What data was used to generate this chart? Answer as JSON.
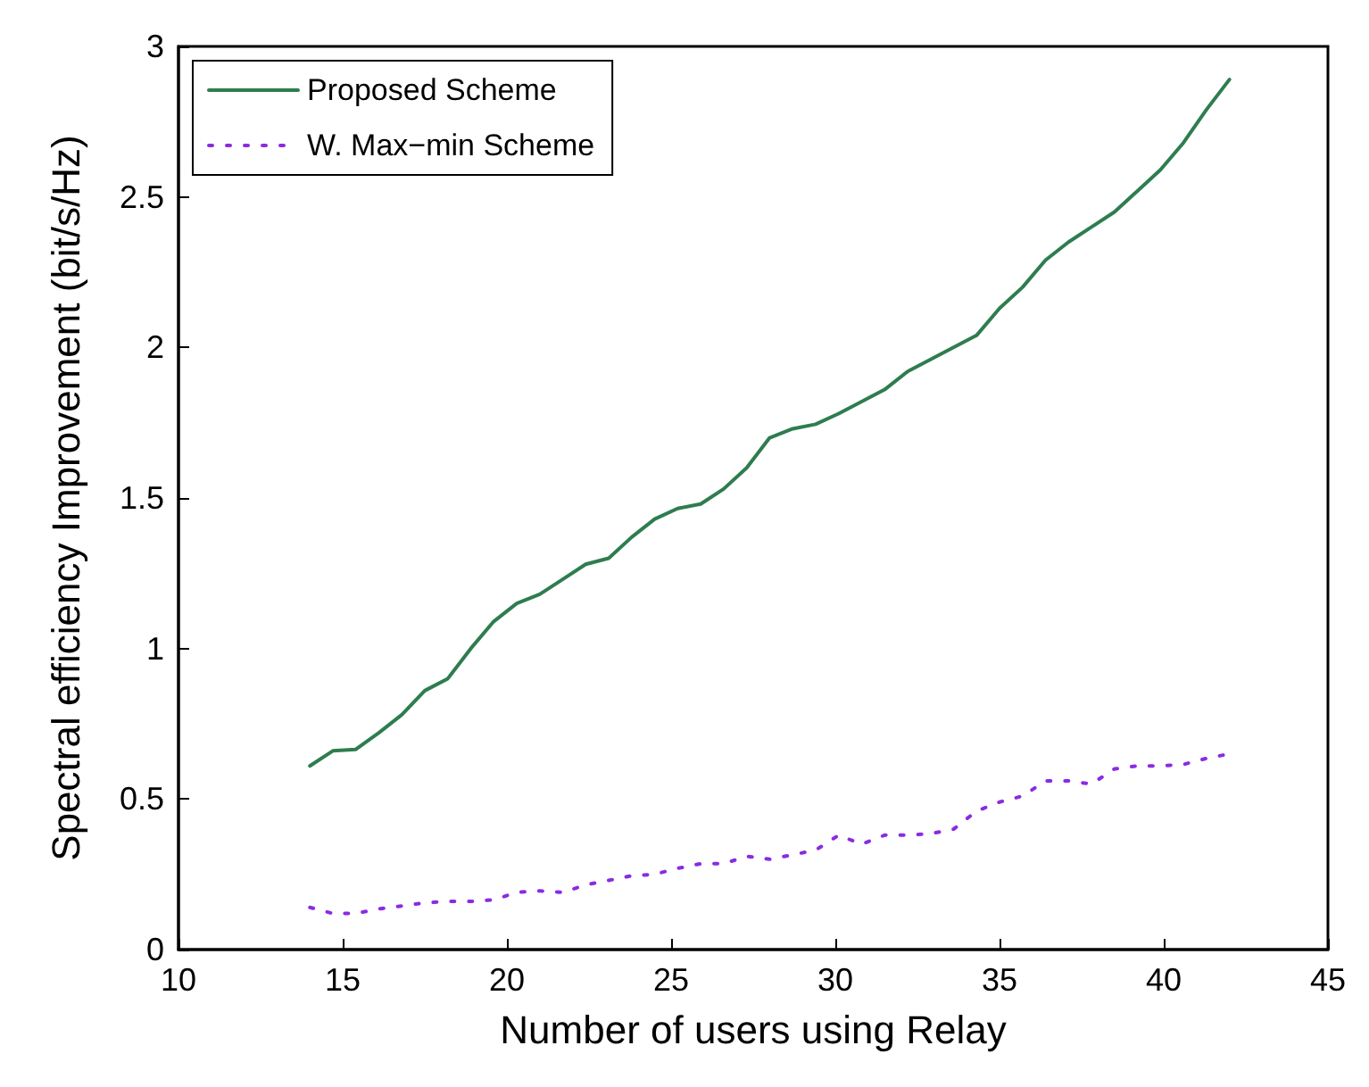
{
  "chart_data": {
    "type": "line",
    "xlabel": "Number of users using Relay",
    "ylabel": "Spectral efficiency Improvement (bit/s/Hz)",
    "x": [
      14,
      14.7,
      15.4,
      16.1,
      16.8,
      17.5,
      18.2,
      18.9,
      19.6,
      20.3,
      21,
      21.7,
      22.4,
      23.1,
      23.8,
      24.5,
      25.2,
      25.9,
      26.6,
      27.3,
      28,
      28.7,
      29.4,
      30.1,
      30.8,
      31.5,
      32.2,
      32.9,
      33.6,
      34.3,
      35,
      35.7,
      36.4,
      37.1,
      37.8,
      38.5,
      39.2,
      39.9,
      40.6,
      41.3,
      42
    ],
    "series": [
      {
        "name": "Proposed Scheme",
        "color": "#2e7d4f",
        "line_style": "solid",
        "values": [
          0.61,
          0.66,
          0.665,
          0.72,
          0.78,
          0.86,
          0.9,
          1.0,
          1.09,
          1.15,
          1.18,
          1.23,
          1.28,
          1.3,
          1.37,
          1.43,
          1.465,
          1.48,
          1.53,
          1.6,
          1.7,
          1.73,
          1.745,
          1.78,
          1.82,
          1.86,
          1.92,
          1.96,
          2.0,
          2.04,
          2.13,
          2.2,
          2.29,
          2.35,
          2.4,
          2.45,
          2.52,
          2.59,
          2.68,
          2.79,
          2.89
        ]
      },
      {
        "name": "W. Max−min Scheme",
        "color": "#8a2be2",
        "line_style": "dotted",
        "values": [
          0.14,
          0.12,
          0.12,
          0.135,
          0.145,
          0.155,
          0.16,
          0.16,
          0.165,
          0.19,
          0.195,
          0.19,
          0.215,
          0.23,
          0.245,
          0.25,
          0.27,
          0.285,
          0.285,
          0.31,
          0.3,
          0.315,
          0.33,
          0.38,
          0.35,
          0.38,
          0.38,
          0.385,
          0.4,
          0.46,
          0.49,
          0.51,
          0.56,
          0.56,
          0.55,
          0.6,
          0.61,
          0.61,
          0.615,
          0.635,
          0.65
        ]
      }
    ],
    "xlim": [
      10,
      45
    ],
    "xticks": [
      10,
      15,
      20,
      25,
      30,
      35,
      40,
      45
    ],
    "ylim": [
      0,
      3
    ],
    "yticks": [
      0,
      0.5,
      1,
      1.5,
      2,
      2.5,
      3
    ],
    "grid": false,
    "legend": "top left",
    "marker": "none"
  }
}
